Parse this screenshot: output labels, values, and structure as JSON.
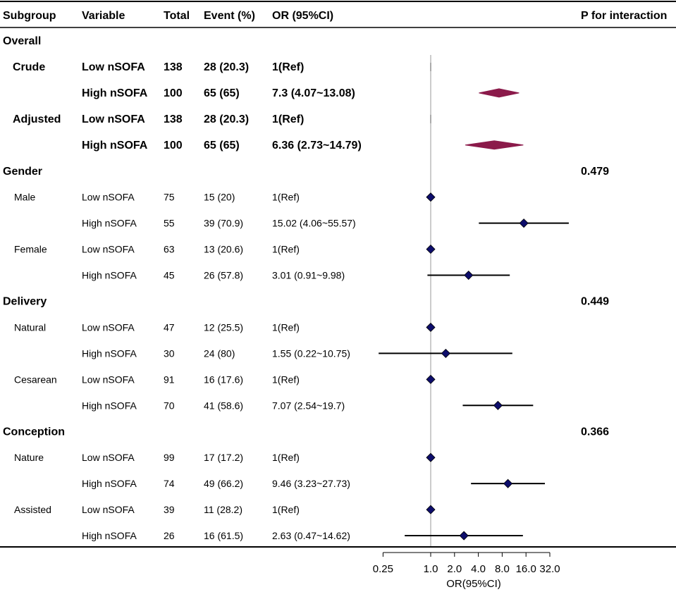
{
  "headers": {
    "subgroup": "Subgroup",
    "variable": "Variable",
    "total": "Total",
    "event": "Event (%)",
    "or": "OR (95%CI)",
    "p": "P for interaction"
  },
  "colors": {
    "diamond_summary": "#8B1A4A",
    "diamond_point": "#0D0D6B",
    "ci_line": "#000000",
    "ref_line": "#999999"
  },
  "chart_data": {
    "type": "forest",
    "x_scale": "log2",
    "xlabel": "OR(95%CI)",
    "xlim": [
      0.25,
      32.0
    ],
    "reference_value": 1.0,
    "ticks": [
      {
        "value": 0.25,
        "label": "0.25"
      },
      {
        "value": 1,
        "label": "1.0"
      },
      {
        "value": 2,
        "label": "2.0"
      },
      {
        "value": 4,
        "label": "4.0"
      },
      {
        "value": 8,
        "label": "8.0"
      },
      {
        "value": 16,
        "label": "16.0"
      },
      {
        "value": 32,
        "label": "32.0"
      }
    ],
    "rows": [
      {
        "kind": "group",
        "subgroup": "Overall",
        "p": ""
      },
      {
        "kind": "summary",
        "subgroup": "Crude",
        "variable": "Low nSOFA",
        "total": "138",
        "event": "28 (20.3)",
        "or_text": "1(Ref)",
        "or": 1,
        "lo": 1,
        "hi": 1
      },
      {
        "kind": "summary",
        "subgroup": "",
        "variable": "High nSOFA",
        "total": "100",
        "event": "65 (65)",
        "or_text": "7.3 (4.07~13.08)",
        "or": 7.3,
        "lo": 4.07,
        "hi": 13.08
      },
      {
        "kind": "summary",
        "subgroup": "Adjusted",
        "variable": "Low nSOFA",
        "total": "138",
        "event": "28 (20.3)",
        "or_text": "1(Ref)",
        "or": 1,
        "lo": 1,
        "hi": 1
      },
      {
        "kind": "summary",
        "subgroup": "",
        "variable": "High nSOFA",
        "total": "100",
        "event": "65 (65)",
        "or_text": "6.36 (2.73~14.79)",
        "or": 6.36,
        "lo": 2.73,
        "hi": 14.79
      },
      {
        "kind": "group",
        "subgroup": "Gender",
        "p": "0.479"
      },
      {
        "kind": "sub",
        "subgroup": "Male",
        "variable": "Low nSOFA",
        "total": "75",
        "event": "15 (20)",
        "or_text": "1(Ref)",
        "or": 1,
        "lo": 1,
        "hi": 1
      },
      {
        "kind": "sub",
        "subgroup": "",
        "variable": "High nSOFA",
        "total": "55",
        "event": "39 (70.9)",
        "or_text": "15.02 (4.06~55.57)",
        "or": 15.02,
        "lo": 4.06,
        "hi": 55.57
      },
      {
        "kind": "sub",
        "subgroup": "Female",
        "variable": "Low nSOFA",
        "total": "63",
        "event": "13 (20.6)",
        "or_text": "1(Ref)",
        "or": 1,
        "lo": 1,
        "hi": 1
      },
      {
        "kind": "sub",
        "subgroup": "",
        "variable": "High nSOFA",
        "total": "45",
        "event": "26 (57.8)",
        "or_text": "3.01 (0.91~9.98)",
        "or": 3.01,
        "lo": 0.91,
        "hi": 9.98
      },
      {
        "kind": "group",
        "subgroup": "Delivery",
        "p": "0.449"
      },
      {
        "kind": "sub",
        "subgroup": "Natural",
        "variable": "Low nSOFA",
        "total": "47",
        "event": "12 (25.5)",
        "or_text": "1(Ref)",
        "or": 1,
        "lo": 1,
        "hi": 1
      },
      {
        "kind": "sub",
        "subgroup": "",
        "variable": "High nSOFA",
        "total": "30",
        "event": "24 (80)",
        "or_text": "1.55 (0.22~10.75)",
        "or": 1.55,
        "lo": 0.22,
        "hi": 10.75
      },
      {
        "kind": "sub",
        "subgroup": "Cesarean",
        "variable": "Low nSOFA",
        "total": "91",
        "event": "16 (17.6)",
        "or_text": "1(Ref)",
        "or": 1,
        "lo": 1,
        "hi": 1
      },
      {
        "kind": "sub",
        "subgroup": "",
        "variable": "High nSOFA",
        "total": "70",
        "event": "41 (58.6)",
        "or_text": "7.07 (2.54~19.7)",
        "or": 7.07,
        "lo": 2.54,
        "hi": 19.7
      },
      {
        "kind": "group",
        "subgroup": "Conception",
        "p": "0.366"
      },
      {
        "kind": "sub",
        "subgroup": "Nature",
        "variable": "Low nSOFA",
        "total": "99",
        "event": "17 (17.2)",
        "or_text": "1(Ref)",
        "or": 1,
        "lo": 1,
        "hi": 1
      },
      {
        "kind": "sub",
        "subgroup": "",
        "variable": "High nSOFA",
        "total": "74",
        "event": "49 (66.2)",
        "or_text": "9.46 (3.23~27.73)",
        "or": 9.46,
        "lo": 3.23,
        "hi": 27.73
      },
      {
        "kind": "sub",
        "subgroup": "Assisted",
        "variable": "Low nSOFA",
        "total": "39",
        "event": "11 (28.2)",
        "or_text": "1(Ref)",
        "or": 1,
        "lo": 1,
        "hi": 1
      },
      {
        "kind": "sub",
        "subgroup": "",
        "variable": "High nSOFA",
        "total": "26",
        "event": "16 (61.5)",
        "or_text": "2.63 (0.47~14.62)",
        "or": 2.63,
        "lo": 0.47,
        "hi": 14.62
      }
    ]
  }
}
